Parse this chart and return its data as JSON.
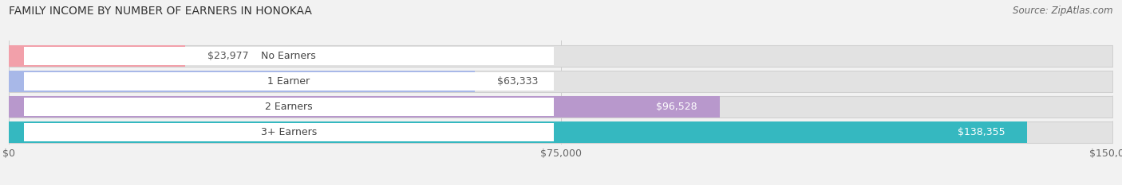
{
  "title": "FAMILY INCOME BY NUMBER OF EARNERS IN HONOKAA",
  "source": "Source: ZipAtlas.com",
  "categories": [
    "No Earners",
    "1 Earner",
    "2 Earners",
    "3+ Earners"
  ],
  "values": [
    23977,
    63333,
    96528,
    138355
  ],
  "bar_colors": [
    "#f2a0aa",
    "#a8b8e8",
    "#b898cc",
    "#35b8c0"
  ],
  "value_labels": [
    "$23,977",
    "$63,333",
    "$96,528",
    "$138,355"
  ],
  "value_inside": [
    false,
    false,
    true,
    true
  ],
  "xlim": [
    0,
    150000
  ],
  "xticks": [
    0,
    75000,
    150000
  ],
  "xtick_labels": [
    "$0",
    "$75,000",
    "$150,000"
  ],
  "background_color": "#f2f2f2",
  "bar_bg_color": "#e2e2e2",
  "bar_bg_border_color": "#d0d0d0",
  "title_fontsize": 10,
  "source_fontsize": 8.5,
  "label_fontsize": 9,
  "value_fontsize": 9,
  "tick_fontsize": 9
}
